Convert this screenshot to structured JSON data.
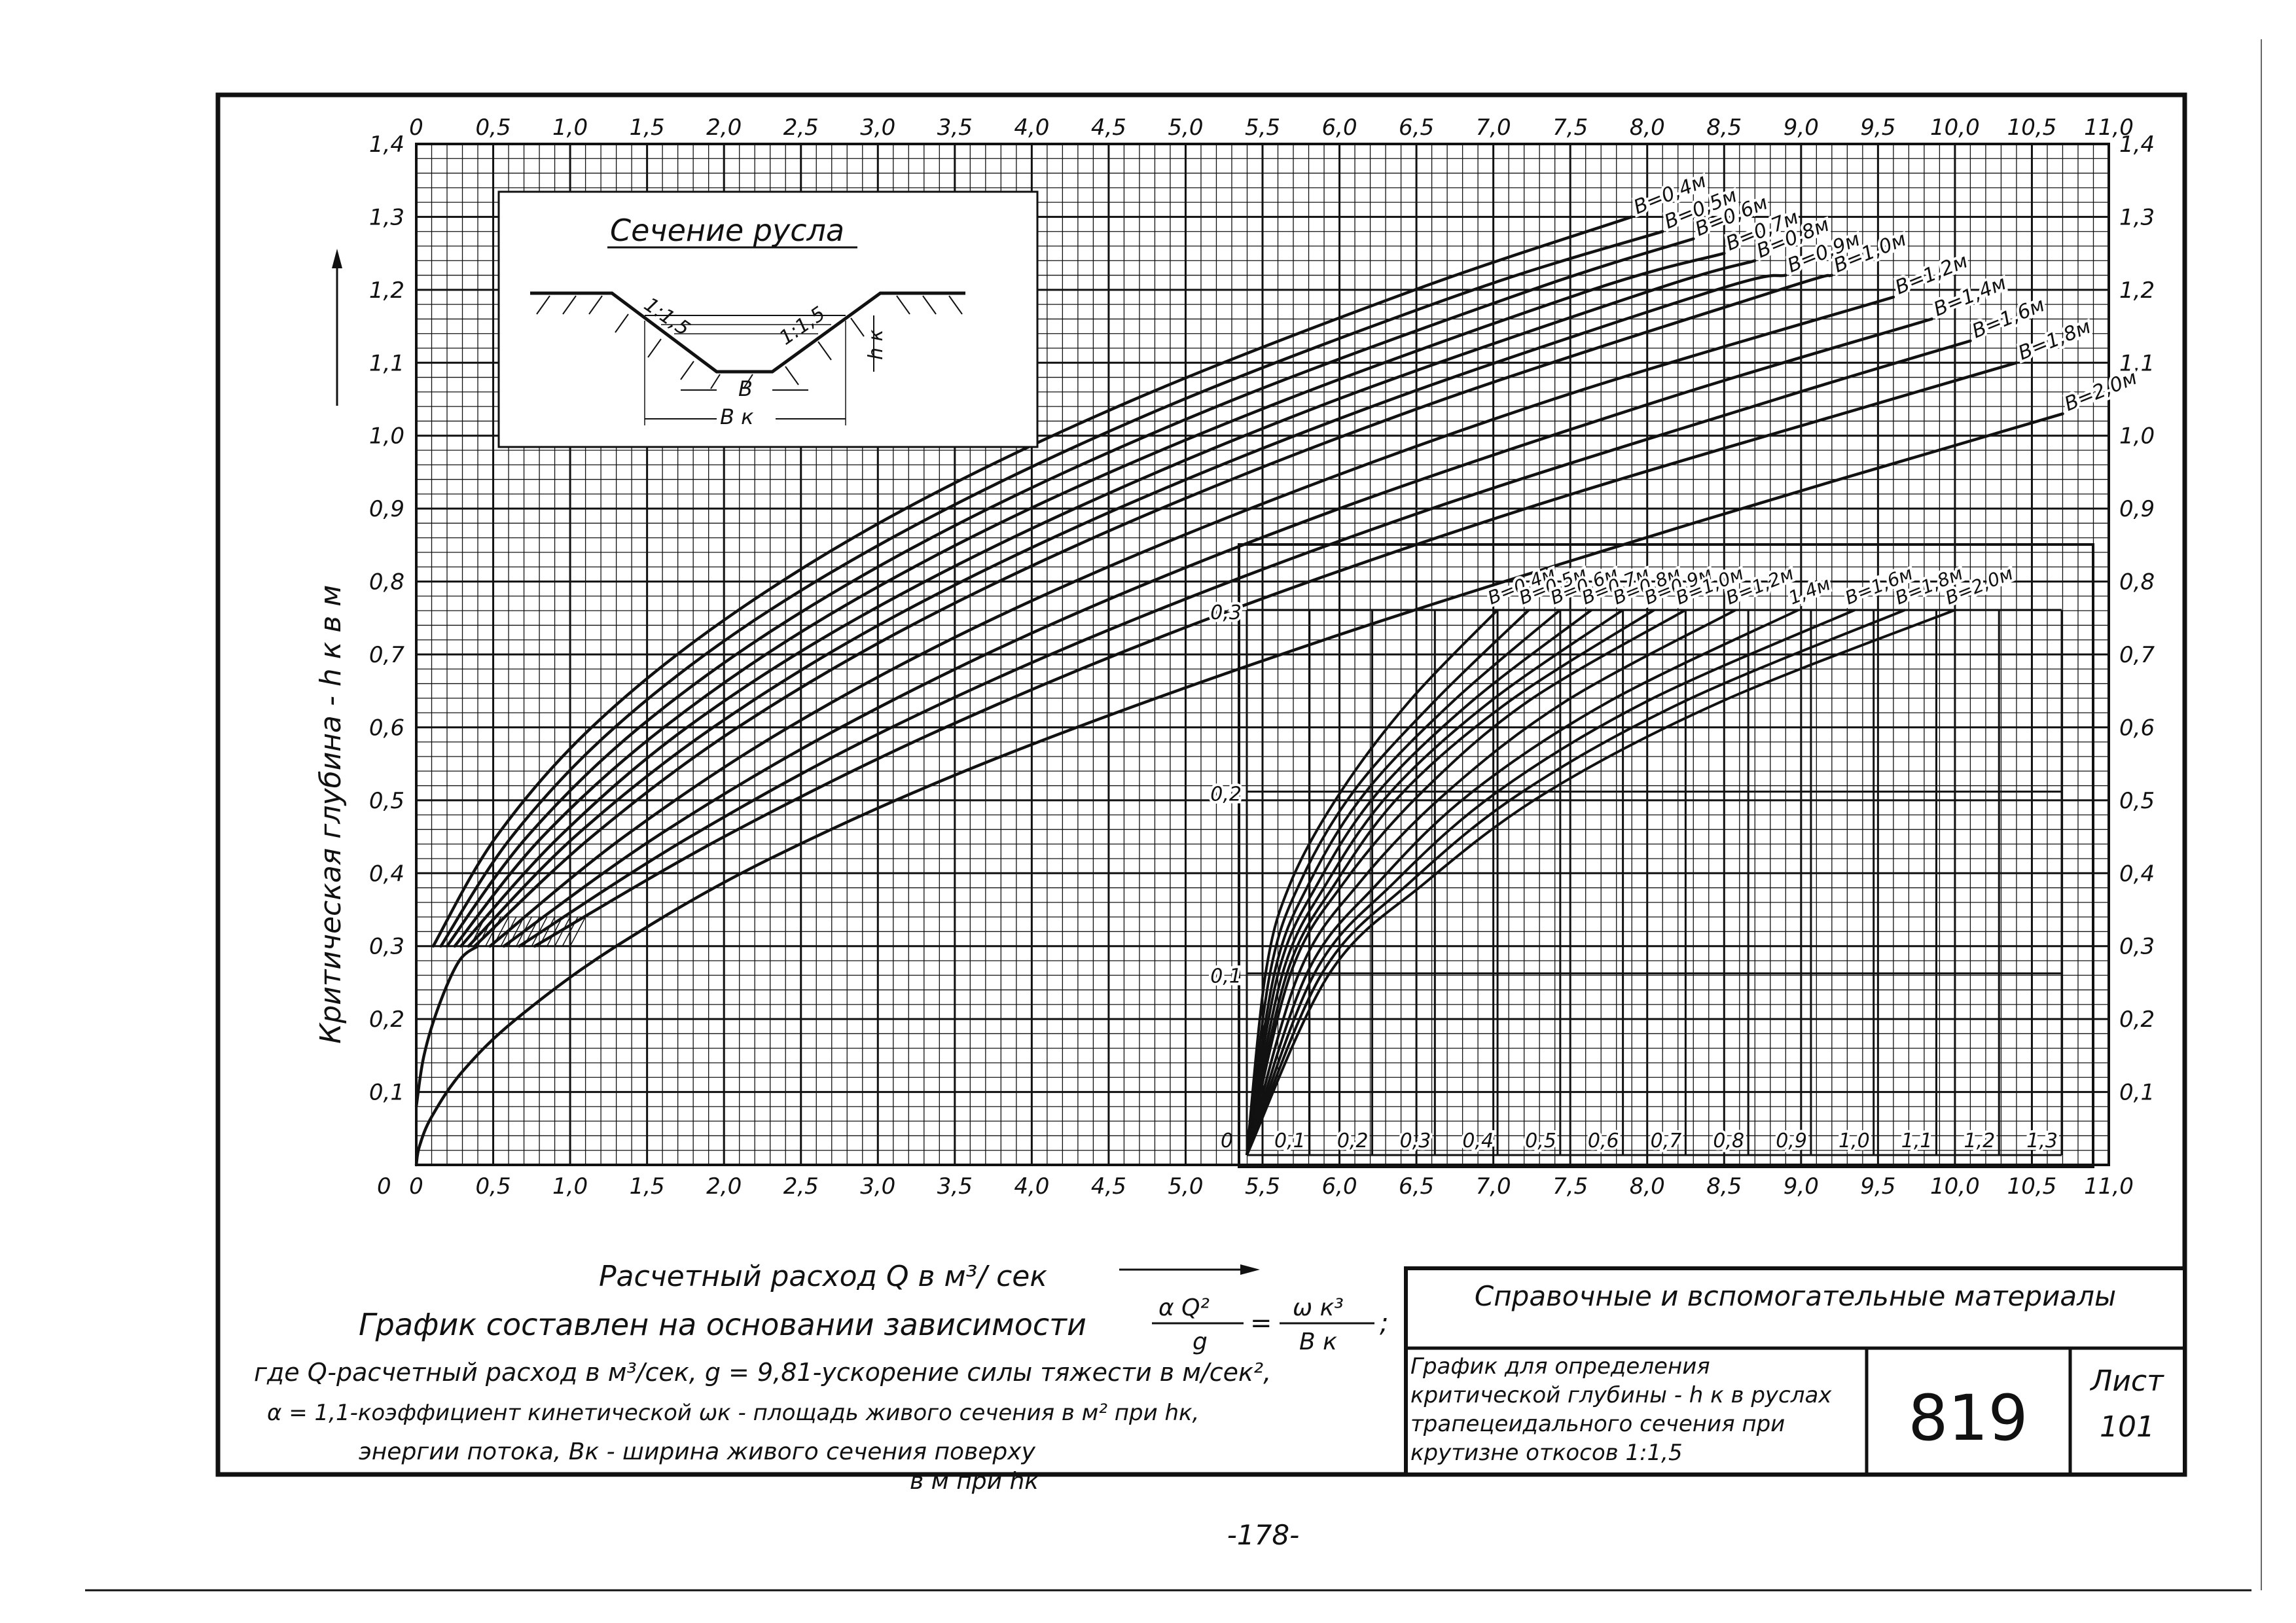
{
  "chart_data": [
    {
      "type": "line",
      "title": "",
      "xlabel": "Расчетный расход Q в м³/ сек",
      "ylabel": "Критическая глубина - h к в м",
      "xlim": [
        0,
        11.0
      ],
      "ylim": [
        0,
        1.4
      ],
      "x_ticks": [
        "0",
        "0,5",
        "1,0",
        "1,5",
        "2,0",
        "2,5",
        "3,0",
        "3,5",
        "4,0",
        "4,5",
        "5,0",
        "5,5",
        "6,0",
        "6,5",
        "7,0",
        "7,5",
        "8,0",
        "8,5",
        "9,0",
        "9,5",
        "10,0",
        "10,5",
        "11,0"
      ],
      "y_ticks": [
        "0",
        "0,1",
        "0,2",
        "0,3",
        "0,4",
        "0,5",
        "0,6",
        "0,7",
        "0,8",
        "0,9",
        "1,0",
        "1,1",
        "1,2",
        "1,3",
        "1,4"
      ],
      "grid": true,
      "series": [
        {
          "name": "В=0,4м",
          "b": 0.4,
          "label_text": "B=0,4м",
          "x": [
            0.11,
            0.52,
            1.14,
            2.02,
            3.18,
            4.67,
            6.49,
            7.9
          ],
          "y": [
            0.3,
            0.45,
            0.6,
            0.75,
            0.9,
            1.05,
            1.2,
            1.3
          ]
        },
        {
          "name": "В=0,5м",
          "b": 0.5,
          "label_text": "B=0,5м",
          "x": [
            0.16,
            0.62,
            1.29,
            2.22,
            3.45,
            4.99,
            6.87,
            8.1
          ],
          "y": [
            0.3,
            0.45,
            0.6,
            0.75,
            0.9,
            1.05,
            1.2,
            1.28
          ]
        },
        {
          "name": "В=0,6м",
          "b": 0.6,
          "label_text": "B=0,6м",
          "x": [
            0.2,
            0.72,
            1.45,
            2.44,
            3.72,
            5.32,
            7.25,
            8.3
          ],
          "y": [
            0.3,
            0.45,
            0.6,
            0.75,
            0.9,
            1.05,
            1.2,
            1.27
          ]
        },
        {
          "name": "В=0,7м",
          "b": 0.7,
          "label_text": "B=0,7м",
          "x": [
            0.25,
            0.82,
            1.61,
            2.65,
            3.99,
            5.66,
            7.64,
            8.5
          ],
          "y": [
            0.3,
            0.45,
            0.6,
            0.75,
            0.9,
            1.05,
            1.2,
            1.25
          ]
        },
        {
          "name": "В=0,8м",
          "b": 0.8,
          "label_text": "B=0,8м",
          "x": [
            0.29,
            0.93,
            1.76,
            2.87,
            4.28,
            5.99,
            8.04,
            8.7
          ],
          "y": [
            0.3,
            0.45,
            0.6,
            0.75,
            0.9,
            1.05,
            1.2,
            1.24
          ]
        },
        {
          "name": "В=0,9м",
          "b": 0.9,
          "label_text": "B=0,9м",
          "x": [
            0.34,
            1.03,
            1.93,
            3.09,
            4.56,
            6.34,
            8.45,
            8.9
          ],
          "y": [
            0.3,
            0.45,
            0.6,
            0.75,
            0.9,
            1.05,
            1.2,
            1.22
          ]
        },
        {
          "name": "В=1,0м",
          "b": 1.0,
          "label_text": "B=1,0м",
          "x": [
            0.38,
            1.14,
            2.09,
            3.31,
            4.84,
            6.68,
            8.86,
            9.2
          ],
          "y": [
            0.3,
            0.45,
            0.6,
            0.75,
            0.9,
            1.05,
            1.2,
            1.22
          ]
        },
        {
          "name": "В=1,2м",
          "b": 1.2,
          "label_text": "B=1,2м",
          "x": [
            0.48,
            1.35,
            2.42,
            3.76,
            5.42,
            7.39,
            9.6
          ],
          "y": [
            0.3,
            0.45,
            0.6,
            0.75,
            0.9,
            1.05,
            1.19
          ]
        },
        {
          "name": "В=1,4м",
          "b": 1.4,
          "label_text": "B=1,4м",
          "x": [
            0.57,
            1.56,
            2.76,
            4.22,
            6.0,
            8.11,
            9.85
          ],
          "y": [
            0.3,
            0.45,
            0.6,
            0.75,
            0.9,
            1.05,
            1.16
          ]
        },
        {
          "name": "В=1,6м",
          "b": 1.6,
          "label_text": "B=1,6м",
          "x": [
            0.67,
            1.78,
            3.09,
            4.69,
            6.6,
            8.84,
            10.1
          ],
          "y": [
            0.3,
            0.45,
            0.6,
            0.75,
            0.9,
            1.05,
            1.13
          ]
        },
        {
          "name": "В=1,8м",
          "b": 1.8,
          "label_text": "B=1,8м",
          "x": [
            0.77,
            2.0,
            3.44,
            5.16,
            7.21,
            9.59,
            10.4
          ],
          "y": [
            0.3,
            0.45,
            0.6,
            0.75,
            0.9,
            1.05,
            1.1
          ]
        },
        {
          "name": "В=2,0м",
          "b": 2.0,
          "label_text": "B=2,0м",
          "x": [
            0.0,
            0.02,
            0.1,
            0.3,
            0.65,
            1.3,
            2.3,
            3.8,
            5.9,
            8.3,
            10.7
          ],
          "y": [
            0.0,
            0.025,
            0.066,
            0.128,
            0.2,
            0.3,
            0.42,
            0.56,
            0.72,
            0.88,
            1.03
          ]
        }
      ],
      "annotations": []
    },
    {
      "type": "line",
      "title": "",
      "xlabel": "",
      "ylabel": "",
      "xlim": [
        0,
        1.3
      ],
      "ylim": [
        0,
        0.3
      ],
      "x_ticks": [
        "0",
        "0,1",
        "0,2",
        "0,3",
        "0,4",
        "0,5",
        "0,6",
        "0,7",
        "0,8",
        "0,9",
        "1,0",
        "1,1",
        "1,2",
        "1,3"
      ],
      "y_ticks": [
        "0",
        "0,1",
        "0,2",
        "0,3"
      ],
      "grid": true,
      "series": [
        {
          "name": "В=0,4м",
          "b": 0.4,
          "label_text": "B=0,4м",
          "x": [
            0.0,
            0.03,
            0.07,
            0.15,
            0.26,
            0.4
          ],
          "y": [
            0.0,
            0.1,
            0.15,
            0.2,
            0.25,
            0.3
          ]
        },
        {
          "name": "В=0,5м",
          "b": 0.5,
          "label_text": "B=0,5м",
          "x": [
            0.0,
            0.037,
            0.085,
            0.17,
            0.3,
            0.45
          ],
          "y": [
            0.0,
            0.1,
            0.15,
            0.2,
            0.25,
            0.3
          ]
        },
        {
          "name": "В=0,6м",
          "b": 0.6,
          "label_text": "B=0,6м",
          "x": [
            0.0,
            0.044,
            0.1,
            0.19,
            0.33,
            0.5
          ],
          "y": [
            0.0,
            0.1,
            0.15,
            0.2,
            0.25,
            0.3
          ]
        },
        {
          "name": "В=0,7м",
          "b": 0.7,
          "label_text": "B=0,7м",
          "x": [
            0.0,
            0.05,
            0.114,
            0.21,
            0.36,
            0.55
          ],
          "y": [
            0.0,
            0.1,
            0.15,
            0.2,
            0.25,
            0.3
          ]
        },
        {
          "name": "В=0,8м",
          "b": 0.8,
          "label_text": "B=0,8м",
          "x": [
            0.0,
            0.057,
            0.128,
            0.23,
            0.39,
            0.6
          ],
          "y": [
            0.0,
            0.1,
            0.15,
            0.2,
            0.25,
            0.3
          ]
        },
        {
          "name": "В=0,9м",
          "b": 0.9,
          "label_text": "B=0,9м",
          "x": [
            0.0,
            0.064,
            0.142,
            0.25,
            0.42,
            0.65
          ],
          "y": [
            0.0,
            0.1,
            0.15,
            0.2,
            0.25,
            0.3
          ]
        },
        {
          "name": "В=1,0м",
          "b": 1.0,
          "label_text": "B=1,0м",
          "x": [
            0.0,
            0.07,
            0.155,
            0.28,
            0.45,
            0.7
          ],
          "y": [
            0.0,
            0.1,
            0.15,
            0.2,
            0.25,
            0.3
          ]
        },
        {
          "name": "В=1,2м",
          "b": 1.2,
          "label_text": "B=1,2м",
          "x": [
            0.0,
            0.083,
            0.18,
            0.32,
            0.51,
            0.78
          ],
          "y": [
            0.0,
            0.1,
            0.15,
            0.2,
            0.25,
            0.3
          ]
        },
        {
          "name": "В=1,4м",
          "b": 1.4,
          "label_text": "1,4м",
          "x": [
            0.0,
            0.096,
            0.21,
            0.36,
            0.58,
            0.88
          ],
          "y": [
            0.0,
            0.1,
            0.15,
            0.2,
            0.25,
            0.3
          ]
        },
        {
          "name": "В=1,6м",
          "b": 1.6,
          "label_text": "B=1,6м",
          "x": [
            0.0,
            0.108,
            0.235,
            0.4,
            0.64,
            0.97
          ],
          "y": [
            0.0,
            0.1,
            0.15,
            0.2,
            0.25,
            0.3
          ]
        },
        {
          "name": "В=1,8м",
          "b": 1.8,
          "label_text": "B=1,8м",
          "x": [
            0.0,
            0.12,
            0.26,
            0.44,
            0.7,
            1.05
          ],
          "y": [
            0.0,
            0.1,
            0.15,
            0.2,
            0.25,
            0.3
          ]
        },
        {
          "name": "В=2,0м",
          "b": 2.0,
          "label_text": "B=2,0м",
          "x": [
            0.0,
            0.132,
            0.285,
            0.48,
            0.76,
            1.13
          ],
          "y": [
            0.0,
            0.1,
            0.15,
            0.2,
            0.25,
            0.3
          ]
        }
      ]
    }
  ],
  "inset": {
    "title": "Сечение русла",
    "slope_left": "1:1,5",
    "slope_right": "1:1,5",
    "b_label": "В",
    "bk_label": "В к",
    "hk_label": "h к"
  },
  "notes": {
    "line1_a": "График составлен на основании зависимости",
    "frac1_num": "α Q²",
    "frac1_den": "g",
    "eq": "=",
    "frac2_num": "ω к³",
    "frac2_den": "В к",
    "frac_suffix": ";",
    "line2": "где Q-расчетный расход в м³/сек, g = 9,81-ускорение силы тяжести в м/сек²,",
    "line3": "α = 1,1-коэффициент кинетической ωк - площадь живого сечения в м² при hк,",
    "line4": "энергии потока, Вк - ширина живого сечения поверху",
    "line5": "в м при hк"
  },
  "title_block": {
    "header": "Справочные и вспомогательные материалы",
    "description": "График для определения критической глубины - h к в руслах трапецеидального сечения при крутизне откосов 1:1,5",
    "number": "819",
    "sheet_label": "Лист",
    "sheet_number": "101"
  },
  "page_number": "-178-"
}
